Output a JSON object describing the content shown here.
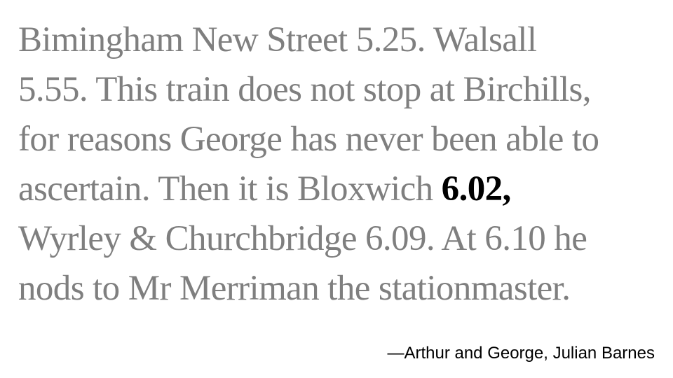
{
  "quote": {
    "line1": "Bimingham New Street 5.25. Walsall",
    "line2": "5.55. This train does not stop at Birchills,",
    "line3": "for reasons George has never been able to",
    "line4_before": "ascertain. Then it is Bloxwich ",
    "line4_highlight": "6.02,",
    "line5": "Wyrley & Churchbridge 6.09. At 6.10 he",
    "line6": "nods to Mr Merriman the stationmaster."
  },
  "attribution": "—Arthur and George, Julian Barnes",
  "colors": {
    "text_gray": "#7f7f7f",
    "highlight": "#000000",
    "background": "#ffffff"
  }
}
